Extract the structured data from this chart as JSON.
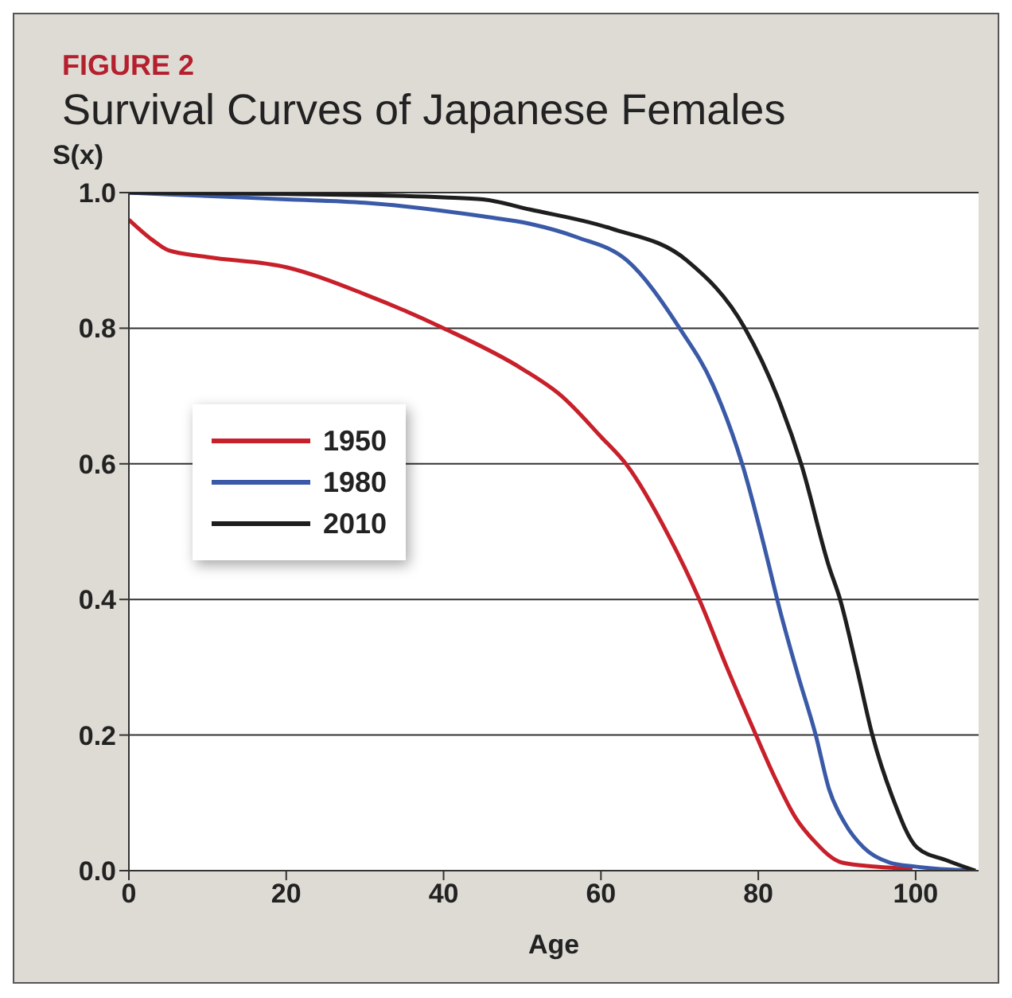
{
  "chart_data": {
    "type": "line",
    "title": "Survival Curves of Japanese Females",
    "annotations": [
      "FIGURE 2"
    ],
    "xlabel": "Age",
    "ylabel": "S(x)",
    "xlim": [
      0,
      108
    ],
    "xticks": [
      0,
      20,
      40,
      60,
      80,
      100
    ],
    "ylim": [
      0,
      1
    ],
    "yticks": [
      {
        "value": 0,
        "label": "0.0"
      },
      {
        "value": 0.2,
        "label": "0.2"
      },
      {
        "value": 0.4,
        "label": "0.4"
      },
      {
        "value": 0.6,
        "label": "0.6"
      },
      {
        "value": 0.8,
        "label": "0.8"
      },
      {
        "value": 1,
        "label": "1.0"
      }
    ],
    "grid": "y",
    "legend": "left",
    "marker": "none",
    "line_style": "solid",
    "series": [
      {
        "name": "1950",
        "color": "#c8202a",
        "x": [
          0,
          3,
          5,
          10,
          20,
          30,
          40,
          50,
          55,
          60,
          63.3,
          68.6,
          72.5,
          76,
          79.7,
          82,
          84.8,
          87,
          90.6,
          95,
          99.6
        ],
        "values": [
          0.96,
          0.93,
          0.915,
          0.905,
          0.89,
          0.85,
          0.8,
          0.74,
          0.7,
          0.64,
          0.598,
          0.494,
          0.4,
          0.3,
          0.2,
          0.14,
          0.077,
          0.045,
          0.012,
          0.006,
          0.003
        ]
      },
      {
        "name": "1980",
        "color": "#3a5aa8",
        "x": [
          0,
          10,
          20,
          30,
          45,
          51,
          57,
          63.3,
          70,
          74.2,
          78,
          81.4,
          82.4,
          85,
          87.3,
          89,
          91,
          93.4,
          96.7,
          100,
          107.6
        ],
        "values": [
          1,
          0.995,
          0.99,
          0.985,
          0.965,
          0.954,
          0.934,
          0.9,
          0.8,
          0.717,
          0.598,
          0.448,
          0.4,
          0.29,
          0.2,
          0.12,
          0.07,
          0.034,
          0.012,
          0.006,
          0
        ]
      },
      {
        "name": "2010",
        "color": "#1e1e1e",
        "x": [
          0,
          20,
          40,
          45,
          51,
          61.3,
          70.9,
          78.3,
          82.4,
          85.5,
          89,
          90.4,
          92.5,
          94.5,
          97,
          100.2,
          104,
          107.6
        ],
        "values": [
          1,
          0.998,
          0.993,
          0.99,
          0.975,
          0.947,
          0.9,
          0.8,
          0.7,
          0.598,
          0.448,
          0.4,
          0.3,
          0.2,
          0.11,
          0.034,
          0.015,
          0
        ]
      }
    ]
  }
}
